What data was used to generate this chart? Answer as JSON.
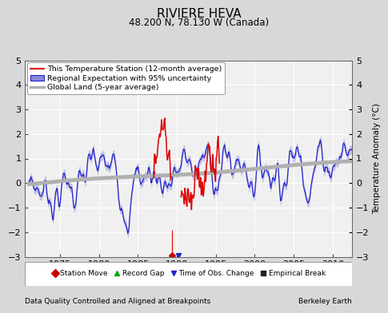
{
  "title": "RIVIERE HEVA",
  "subtitle": "48.200 N, 78.130 W (Canada)",
  "ylabel": "Temperature Anomaly (°C)",
  "xlabel_note": "Data Quality Controlled and Aligned at Breakpoints",
  "credit": "Berkeley Earth",
  "xlim": [
    1970.5,
    2012.5
  ],
  "ylim": [
    -3,
    5
  ],
  "yticks": [
    -3,
    -2,
    -1,
    0,
    1,
    2,
    3,
    4,
    5
  ],
  "xticks": [
    1975,
    1980,
    1985,
    1990,
    1995,
    2000,
    2005,
    2010
  ],
  "bg_color": "#d8d8d8",
  "plot_bg_color": "#f0f0f0",
  "grid_color": "#ffffff",
  "red_line_color": "#dd0000",
  "blue_line_color": "#2222cc",
  "blue_fill_color": "#8888dd",
  "gray_line_color": "#b0b0b0",
  "legend_items": [
    "This Temperature Station (12-month average)",
    "Regional Expectation with 95% uncertainty",
    "Global Land (5-year average)"
  ],
  "marker_labels": [
    "Station Move",
    "Record Gap",
    "Time of Obs. Change",
    "Empirical Break"
  ],
  "marker_colors": [
    "#cc0000",
    "#00aa00",
    "#2222cc",
    "#222222"
  ],
  "marker_shapes": [
    "D",
    "^",
    "v",
    "s"
  ],
  "station_move_year": 1989.4,
  "time_obs_year": 1990.2
}
